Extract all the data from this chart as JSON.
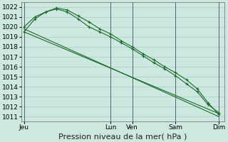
{
  "background_color": "#cce8e0",
  "grid_color": "#aaccc4",
  "line_color": "#1a6b2a",
  "marker_color": "#1a6b2a",
  "vline_color": "#556666",
  "ylabel_ticks": [
    1011,
    1012,
    1013,
    1014,
    1015,
    1016,
    1017,
    1018,
    1019,
    1020,
    1021,
    1022
  ],
  "ylim": [
    1010.5,
    1022.5
  ],
  "xlabel": "Pression niveau de la mer( hPa )",
  "xlabel_fontsize": 8,
  "tick_fontsize": 6.5,
  "day_labels": [
    "Jeu",
    "Lun",
    "Ven",
    "Sam",
    "Dim"
  ],
  "day_x": [
    0,
    16,
    20,
    28,
    36
  ],
  "xlim": [
    -0.5,
    37
  ],
  "vline_x": [
    0,
    16,
    20,
    28,
    36
  ],
  "series_marked": [
    {
      "x": [
        0,
        2,
        4,
        6,
        8,
        10,
        12,
        14,
        16,
        18,
        20,
        22,
        24,
        26,
        28,
        30,
        32,
        34,
        36
      ],
      "y": [
        1019.5,
        1020.8,
        1021.5,
        1021.9,
        1021.7,
        1021.1,
        1020.5,
        1019.8,
        1019.3,
        1018.6,
        1018.0,
        1017.3,
        1016.7,
        1016.0,
        1015.4,
        1014.7,
        1013.8,
        1012.4,
        1011.2
      ]
    },
    {
      "x": [
        0,
        2,
        4,
        6,
        8,
        10,
        12,
        14,
        16,
        18,
        20,
        22,
        24,
        26,
        28,
        30,
        32,
        34,
        36
      ],
      "y": [
        1020.0,
        1021.0,
        1021.5,
        1021.8,
        1021.5,
        1020.8,
        1020.0,
        1019.5,
        1019.0,
        1018.4,
        1017.8,
        1017.1,
        1016.4,
        1015.8,
        1015.1,
        1014.3,
        1013.5,
        1012.2,
        1011.4
      ]
    }
  ],
  "series_plain": [
    {
      "x": [
        0,
        36
      ],
      "y": [
        1019.8,
        1011.0
      ]
    },
    {
      "x": [
        0,
        36
      ],
      "y": [
        1019.5,
        1011.3
      ]
    }
  ]
}
